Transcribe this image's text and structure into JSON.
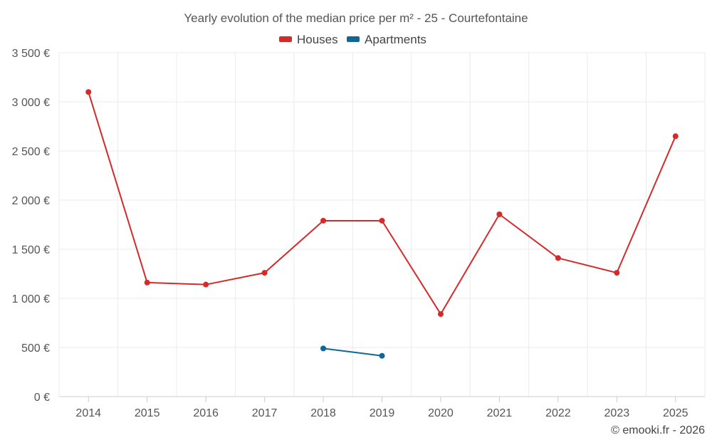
{
  "chart_data": {
    "type": "line",
    "title": "Yearly evolution of the median price per m² - 25 - Courtefontaine",
    "categories": [
      "2014",
      "2015",
      "2016",
      "2017",
      "2018",
      "2019",
      "2020",
      "2021",
      "2022",
      "2023",
      "2025"
    ],
    "series": [
      {
        "name": "Houses",
        "color": "#d42a2a",
        "values": [
          3100,
          1160,
          1140,
          1260,
          1790,
          1790,
          840,
          1855,
          1410,
          1260,
          2650
        ]
      },
      {
        "name": "Apartments",
        "color": "#0f6697",
        "values": [
          null,
          null,
          null,
          null,
          490,
          415,
          null,
          null,
          null,
          null,
          null
        ]
      }
    ],
    "ylim": [
      0,
      3500
    ],
    "yticks": [
      0,
      500,
      1000,
      1500,
      2000,
      2500,
      3000,
      3500
    ],
    "ytick_labels": [
      "0 €",
      "500 €",
      "1 000 €",
      "1 500 €",
      "2 000 €",
      "2 500 €",
      "3 000 €",
      "3 500 €"
    ],
    "xlabel": "",
    "ylabel": "",
    "grid": true,
    "legend_position": "top-center"
  },
  "credit": "© emooki.fr - 2026"
}
